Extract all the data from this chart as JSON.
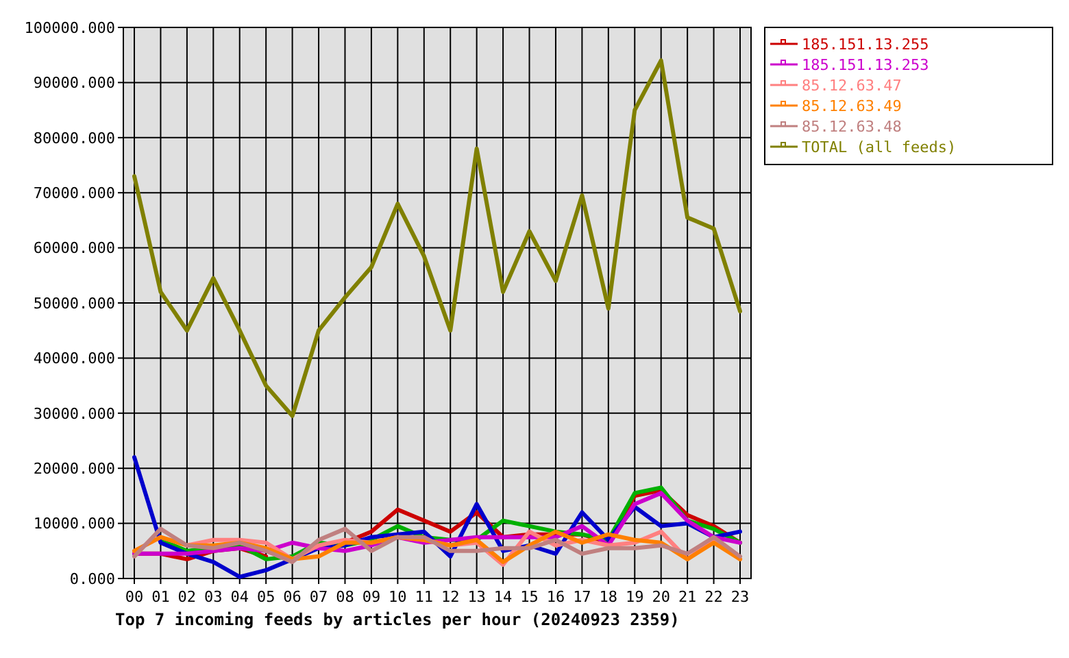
{
  "chart_data": {
    "type": "line",
    "title": "Top 7 incoming feeds by articles per hour (20240923 2359)",
    "categories": [
      "00",
      "01",
      "02",
      "03",
      "04",
      "05",
      "06",
      "07",
      "08",
      "09",
      "10",
      "11",
      "12",
      "13",
      "14",
      "15",
      "16",
      "17",
      "18",
      "19",
      "20",
      "21",
      "22",
      "23"
    ],
    "ylim": [
      0,
      100000
    ],
    "yticks": [
      {
        "value": 0,
        "label": "0.000"
      },
      {
        "value": 10000,
        "label": "10000.000"
      },
      {
        "value": 20000,
        "label": "20000.000"
      },
      {
        "value": 30000,
        "label": "30000.000"
      },
      {
        "value": 40000,
        "label": "40000.000"
      },
      {
        "value": 50000,
        "label": "50000.000"
      },
      {
        "value": 60000,
        "label": "60000.000"
      },
      {
        "value": 70000,
        "label": "70000.000"
      },
      {
        "value": 80000,
        "label": "80000.000"
      },
      {
        "value": 90000,
        "label": "90000.000"
      },
      {
        "value": 100000,
        "label": "100000.000"
      }
    ],
    "grid": true,
    "legend": "top right",
    "series": [
      {
        "name": "185.151.13.255",
        "color": "#cc0000",
        "values": [
          4500,
          4500,
          3500,
          5000,
          5500,
          4000,
          null,
          5500,
          6500,
          8500,
          12500,
          10500,
          8500,
          12000,
          7500,
          8000,
          8000,
          8000,
          6500,
          15000,
          16000,
          11500,
          9500,
          6500
        ]
      },
      {
        "color": "#00b000",
        "values": [
          null,
          7000,
          5000,
          5500,
          6000,
          3500,
          4000,
          6500,
          6000,
          7000,
          9500,
          7500,
          7000,
          7000,
          10500,
          9500,
          8500,
          8000,
          7000,
          15500,
          16500,
          10500,
          9000,
          6500
        ]
      },
      {
        "color": "#0000cc",
        "values": [
          22000,
          6500,
          4500,
          3000,
          300,
          1500,
          3500,
          5500,
          6000,
          7500,
          8000,
          8500,
          4000,
          13500,
          5000,
          6000,
          4500,
          12000,
          7000,
          13000,
          9500,
          10000,
          7500,
          8500
        ]
      },
      {
        "name": "185.151.13.253",
        "color": "#cc00cc",
        "values": [
          4500,
          4500,
          4500,
          5000,
          5500,
          5000,
          6500,
          5500,
          5000,
          6000,
          7500,
          6500,
          7000,
          7500,
          7500,
          7500,
          7500,
          9500,
          6000,
          13500,
          15500,
          10500,
          7500,
          6500
        ]
      },
      {
        "name": "85.12.63.47",
        "color": "#ff8080",
        "values": [
          5000,
          7500,
          6000,
          7000,
          7000,
          6500,
          3500,
          6000,
          7000,
          6500,
          7500,
          7000,
          6000,
          6500,
          2500,
          8500,
          6000,
          7000,
          6000,
          6500,
          8500,
          3500,
          7000,
          3500
        ]
      },
      {
        "name": "85.12.63.49",
        "color": "#ff8000",
        "values": [
          5000,
          7500,
          6000,
          6000,
          6500,
          5500,
          3500,
          4000,
          6500,
          6500,
          7500,
          7000,
          6000,
          7000,
          3000,
          6000,
          8500,
          6500,
          8000,
          7000,
          6500,
          3500,
          6500,
          3500
        ]
      },
      {
        "name": "85.12.63.48",
        "color": "#c08080",
        "values": [
          4000,
          9000,
          6000,
          5500,
          6500,
          5000,
          3000,
          7000,
          9000,
          5000,
          7500,
          7500,
          5000,
          5000,
          5500,
          5500,
          7000,
          4500,
          5500,
          5500,
          6000,
          4500,
          7500,
          4000
        ]
      },
      {
        "name": "TOTAL (all feeds)",
        "color": "#808000",
        "values": [
          73000,
          52000,
          45000,
          54500,
          45000,
          35000,
          29500,
          45000,
          51000,
          56500,
          68000,
          58500,
          45000,
          78000,
          52000,
          63000,
          54000,
          69500,
          49000,
          85000,
          94000,
          65500,
          63500,
          48500
        ]
      }
    ]
  }
}
